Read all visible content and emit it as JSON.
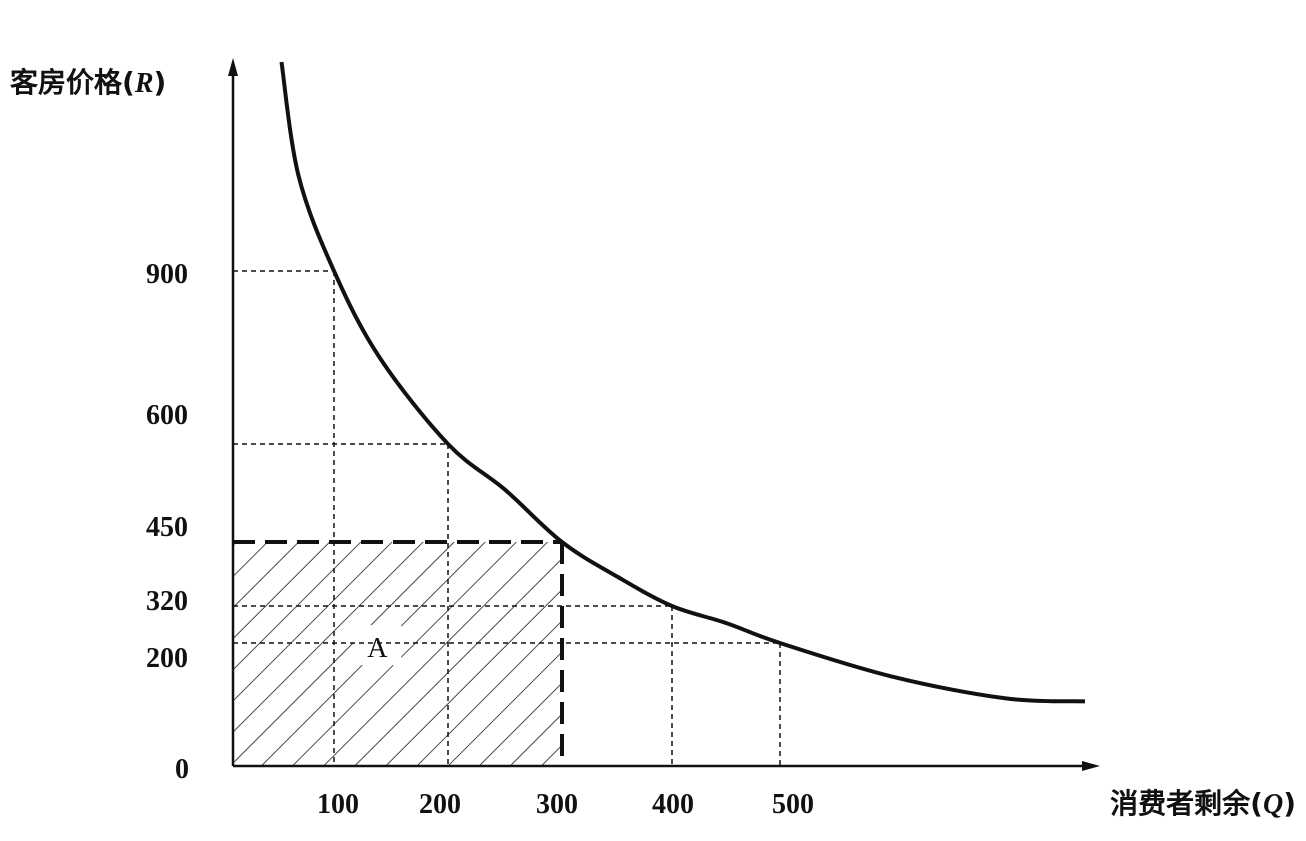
{
  "chart_data": {
    "type": "line",
    "xlabel": "消费者剩余",
    "xlabel_var": "Q",
    "ylabel": "客房价格",
    "ylabel_var": "R",
    "origin_label": "0",
    "x_ticks": [
      "100",
      "200",
      "300",
      "400",
      "500"
    ],
    "y_ticks": [
      "900",
      "600",
      "450",
      "320",
      "200"
    ],
    "grid": false,
    "series": [
      {
        "type": "demand-curve",
        "points": [
          {
            "q": 48,
            "r": 1560
          },
          {
            "q": 65,
            "r": 1200
          },
          {
            "q": 100,
            "r": 900
          },
          {
            "q": 140,
            "r": 750
          },
          {
            "q": 200,
            "r": 600
          },
          {
            "q": 250,
            "r": 530
          },
          {
            "q": 300,
            "r": 450
          },
          {
            "q": 350,
            "r": 380
          },
          {
            "q": 400,
            "r": 320
          },
          {
            "q": 450,
            "r": 265
          },
          {
            "q": 500,
            "r": 200
          },
          {
            "q": 600,
            "r": 145
          },
          {
            "q": 700,
            "r": 110
          },
          {
            "q": 770,
            "r": 105
          }
        ]
      }
    ],
    "reference_points": [
      {
        "q": 100,
        "r": 900
      },
      {
        "q": 200,
        "r": 600
      },
      {
        "q": 400,
        "r": 320
      },
      {
        "q": 500,
        "r": 200
      }
    ],
    "shaded_region": {
      "label": "A",
      "q_max": 300,
      "r_max": 450
    }
  }
}
